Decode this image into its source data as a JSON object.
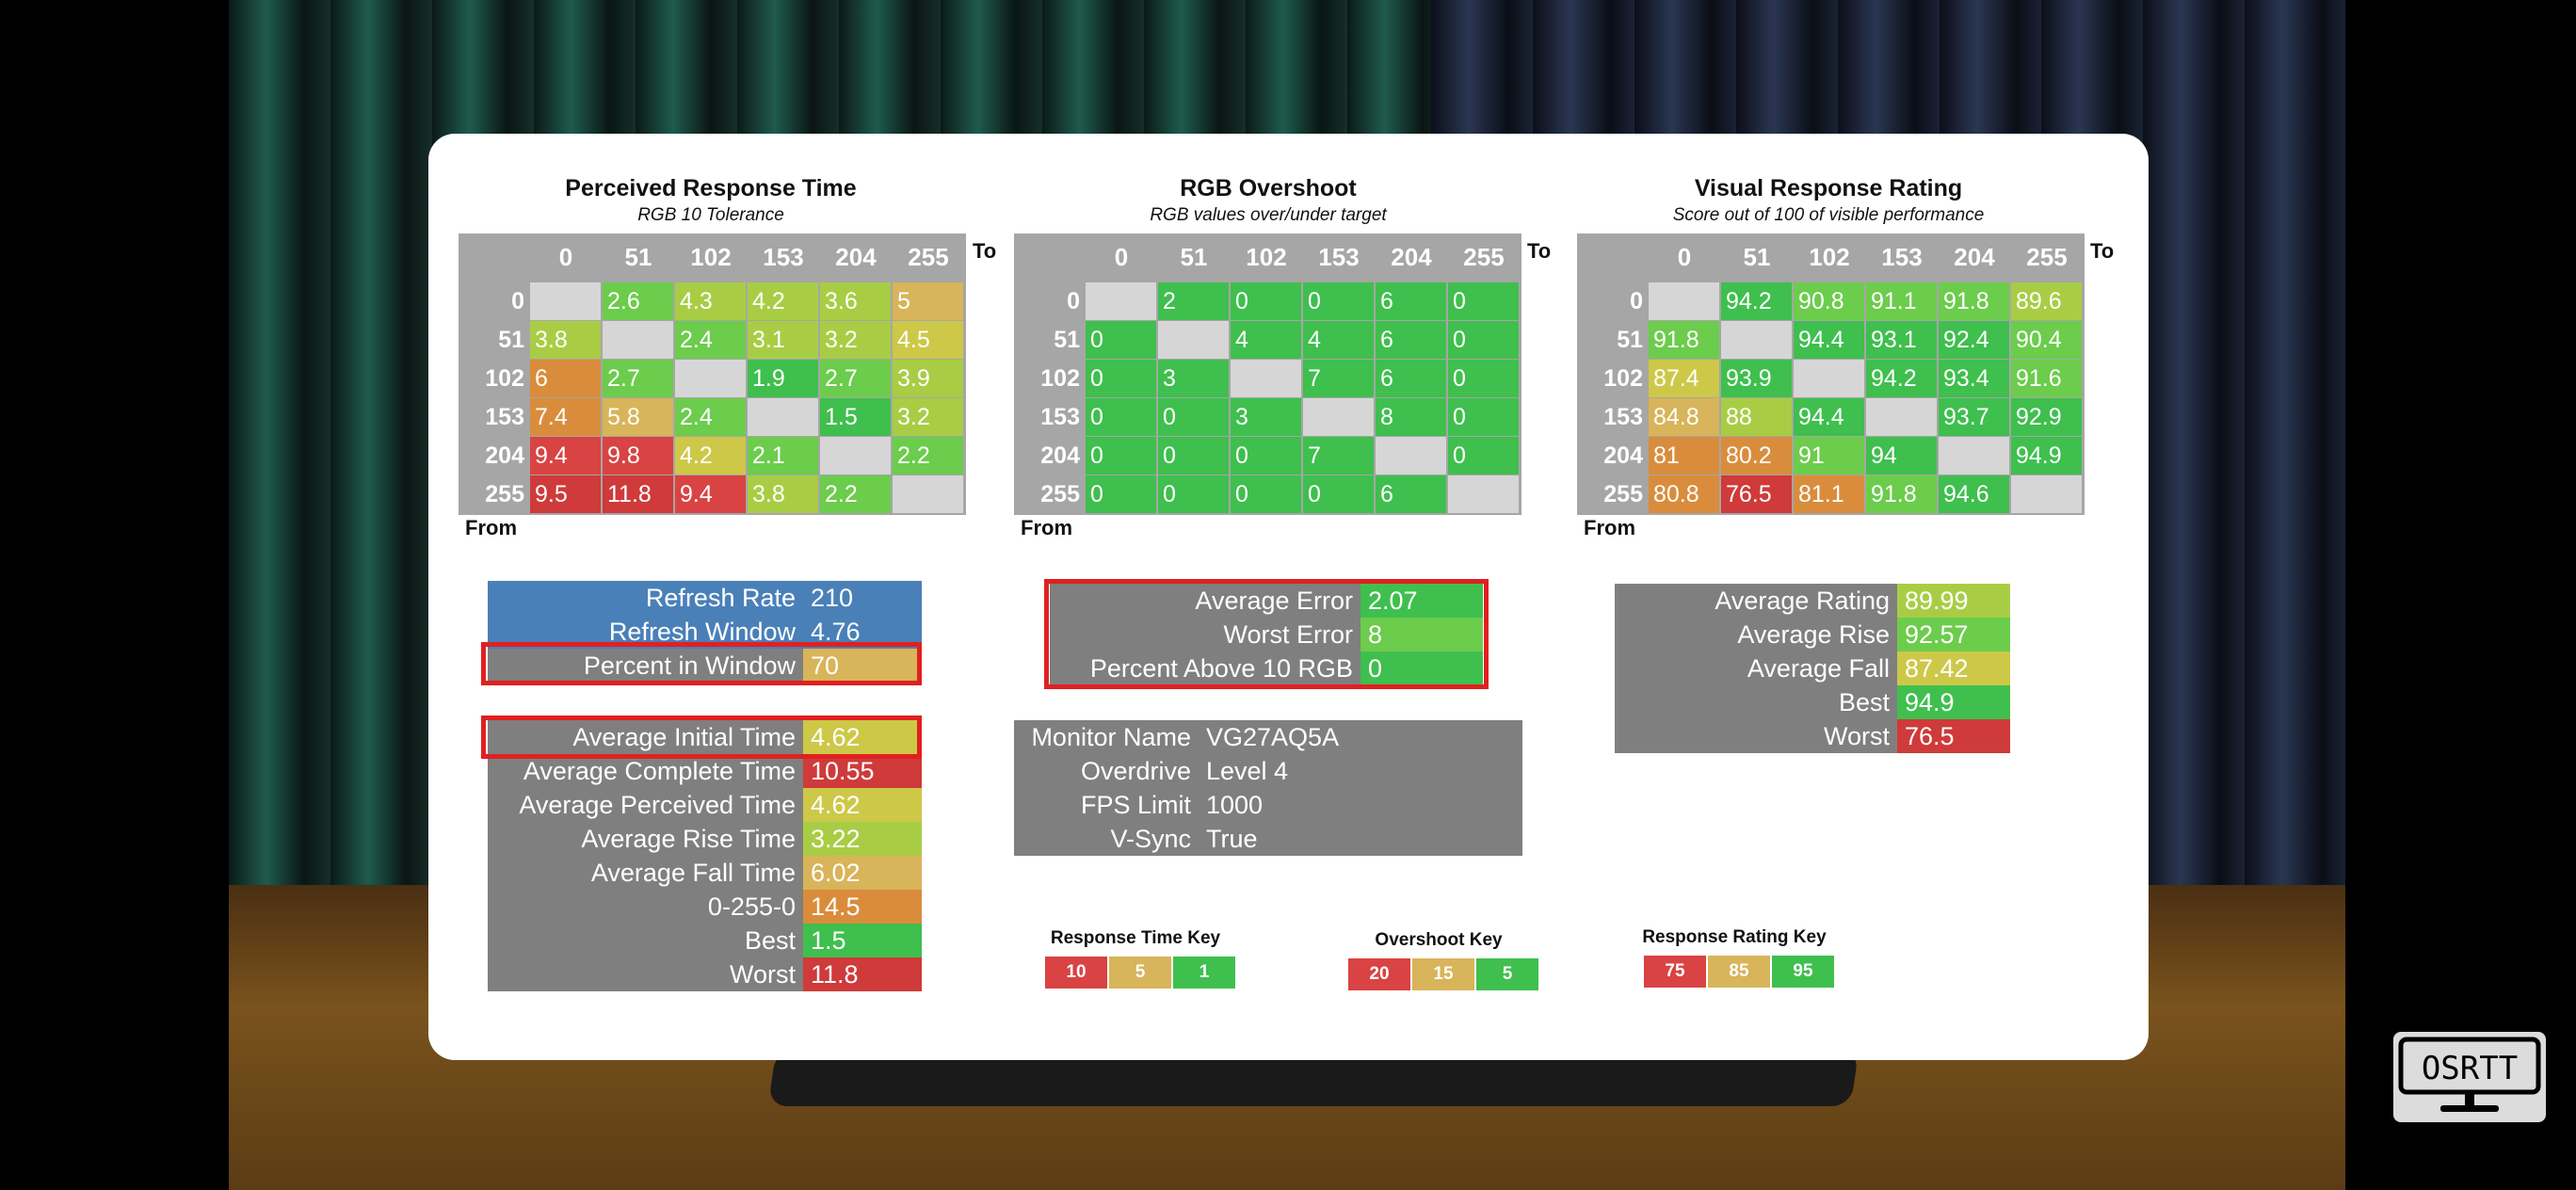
{
  "colors": {
    "grid_bg": "#a6a6a6",
    "empty_cell": "#d6d6d6",
    "panel_gray": "#7f7f7f",
    "blue": "#4a80b8",
    "highlight": "#e02020",
    "scale": {
      "green": "#3fbf4e",
      "lgreen": "#6ccc4c",
      "ygreen": "#a8cd45",
      "yellow": "#cdc848",
      "tan": "#d8b45a",
      "orange": "#d98d3c",
      "red": "#d94343",
      "dred": "#cf3a3a"
    }
  },
  "panels": {
    "response": {
      "title": "Perceived Response Time",
      "subtitle": "RGB 10 Tolerance",
      "headers": [
        "0",
        "51",
        "102",
        "153",
        "204",
        "255"
      ],
      "to_label": "To",
      "from_label": "From",
      "rows": [
        {
          "label": "0",
          "cells": [
            [
              "",
              ""
            ],
            [
              "2.6",
              "lgreen"
            ],
            [
              "4.3",
              "ygreen"
            ],
            [
              "4.2",
              "ygreen"
            ],
            [
              "3.6",
              "ygreen"
            ],
            [
              "5",
              "tan"
            ]
          ]
        },
        {
          "label": "51",
          "cells": [
            [
              "3.8",
              "ygreen"
            ],
            [
              "",
              ""
            ],
            [
              "2.4",
              "lgreen"
            ],
            [
              "3.1",
              "ygreen"
            ],
            [
              "3.2",
              "ygreen"
            ],
            [
              "4.5",
              "yellow"
            ]
          ]
        },
        {
          "label": "102",
          "cells": [
            [
              "6",
              "orange"
            ],
            [
              "2.7",
              "lgreen"
            ],
            [
              "",
              ""
            ],
            [
              "1.9",
              "green"
            ],
            [
              "2.7",
              "lgreen"
            ],
            [
              "3.9",
              "ygreen"
            ]
          ]
        },
        {
          "label": "153",
          "cells": [
            [
              "7.4",
              "orange"
            ],
            [
              "5.8",
              "tan"
            ],
            [
              "2.4",
              "lgreen"
            ],
            [
              "",
              ""
            ],
            [
              "1.5",
              "green"
            ],
            [
              "3.2",
              "ygreen"
            ]
          ]
        },
        {
          "label": "204",
          "cells": [
            [
              "9.4",
              "red"
            ],
            [
              "9.8",
              "red"
            ],
            [
              "4.2",
              "yellow"
            ],
            [
              "2.1",
              "lgreen"
            ],
            [
              "",
              ""
            ],
            [
              "2.2",
              "lgreen"
            ]
          ]
        },
        {
          "label": "255",
          "cells": [
            [
              "9.5",
              "dred"
            ],
            [
              "11.8",
              "dred"
            ],
            [
              "9.4",
              "red"
            ],
            [
              "3.8",
              "ygreen"
            ],
            [
              "2.2",
              "lgreen"
            ],
            [
              "",
              ""
            ]
          ]
        }
      ]
    },
    "overshoot": {
      "title": "RGB Overshoot",
      "subtitle": "RGB values over/under target",
      "headers": [
        "0",
        "51",
        "102",
        "153",
        "204",
        "255"
      ],
      "to_label": "To",
      "from_label": "From",
      "rows": [
        {
          "label": "0",
          "cells": [
            [
              "",
              ""
            ],
            [
              "2",
              "green"
            ],
            [
              "0",
              "green"
            ],
            [
              "0",
              "green"
            ],
            [
              "6",
              "green"
            ],
            [
              "0",
              "green"
            ]
          ]
        },
        {
          "label": "51",
          "cells": [
            [
              "0",
              "green"
            ],
            [
              "",
              ""
            ],
            [
              "4",
              "green"
            ],
            [
              "4",
              "green"
            ],
            [
              "6",
              "green"
            ],
            [
              "0",
              "green"
            ]
          ]
        },
        {
          "label": "102",
          "cells": [
            [
              "0",
              "green"
            ],
            [
              "3",
              "green"
            ],
            [
              "",
              ""
            ],
            [
              "7",
              "green"
            ],
            [
              "6",
              "green"
            ],
            [
              "0",
              "green"
            ]
          ]
        },
        {
          "label": "153",
          "cells": [
            [
              "0",
              "green"
            ],
            [
              "0",
              "green"
            ],
            [
              "3",
              "green"
            ],
            [
              "",
              ""
            ],
            [
              "8",
              "green"
            ],
            [
              "0",
              "green"
            ]
          ]
        },
        {
          "label": "204",
          "cells": [
            [
              "0",
              "green"
            ],
            [
              "0",
              "green"
            ],
            [
              "0",
              "green"
            ],
            [
              "7",
              "green"
            ],
            [
              "",
              ""
            ],
            [
              "0",
              "green"
            ]
          ]
        },
        {
          "label": "255",
          "cells": [
            [
              "0",
              "green"
            ],
            [
              "0",
              "green"
            ],
            [
              "0",
              "green"
            ],
            [
              "0",
              "green"
            ],
            [
              "6",
              "green"
            ],
            [
              "",
              ""
            ]
          ]
        }
      ]
    },
    "rating": {
      "title": "Visual Response Rating",
      "subtitle": "Score out of 100 of visible performance",
      "headers": [
        "0",
        "51",
        "102",
        "153",
        "204",
        "255"
      ],
      "to_label": "To",
      "from_label": "From",
      "rows": [
        {
          "label": "0",
          "cells": [
            [
              "",
              ""
            ],
            [
              "94.2",
              "green"
            ],
            [
              "90.8",
              "lgreen"
            ],
            [
              "91.1",
              "lgreen"
            ],
            [
              "91.8",
              "lgreen"
            ],
            [
              "89.6",
              "ygreen"
            ]
          ]
        },
        {
          "label": "51",
          "cells": [
            [
              "91.8",
              "lgreen"
            ],
            [
              "",
              ""
            ],
            [
              "94.4",
              "green"
            ],
            [
              "93.1",
              "green"
            ],
            [
              "92.4",
              "green"
            ],
            [
              "90.4",
              "lgreen"
            ]
          ]
        },
        {
          "label": "102",
          "cells": [
            [
              "87.4",
              "yellow"
            ],
            [
              "93.9",
              "green"
            ],
            [
              "",
              ""
            ],
            [
              "94.2",
              "green"
            ],
            [
              "93.4",
              "green"
            ],
            [
              "91.6",
              "lgreen"
            ]
          ]
        },
        {
          "label": "153",
          "cells": [
            [
              "84.8",
              "tan"
            ],
            [
              "88",
              "ygreen"
            ],
            [
              "94.4",
              "green"
            ],
            [
              "",
              ""
            ],
            [
              "93.7",
              "green"
            ],
            [
              "92.9",
              "green"
            ]
          ]
        },
        {
          "label": "204",
          "cells": [
            [
              "81",
              "orange"
            ],
            [
              "80.2",
              "orange"
            ],
            [
              "91",
              "lgreen"
            ],
            [
              "94",
              "green"
            ],
            [
              "",
              ""
            ],
            [
              "94.9",
              "green"
            ]
          ]
        },
        {
          "label": "255",
          "cells": [
            [
              "80.8",
              "orange"
            ],
            [
              "76.5",
              "dred"
            ],
            [
              "81.1",
              "orange"
            ],
            [
              "91.8",
              "lgreen"
            ],
            [
              "94.6",
              "green"
            ],
            [
              "",
              ""
            ]
          ]
        }
      ]
    }
  },
  "stats": {
    "refresh": [
      {
        "label": "Refresh Rate",
        "value": "210",
        "bg": "blue",
        "vbg": "blue"
      },
      {
        "label": "Refresh Window",
        "value": "4.76",
        "bg": "blue",
        "vbg": "blue"
      },
      {
        "label": "Percent in Window",
        "value": "70",
        "bg": "panel_gray",
        "vbg": "tan"
      }
    ],
    "times": [
      {
        "label": "Average Initial Time",
        "value": "4.62",
        "vbg": "yellow"
      },
      {
        "label": "Average Complete Time",
        "value": "10.55",
        "vbg": "dred"
      },
      {
        "label": "Average Perceived Time",
        "value": "4.62",
        "vbg": "yellow"
      },
      {
        "label": "Average Rise Time",
        "value": "3.22",
        "vbg": "ygreen"
      },
      {
        "label": "Average Fall Time",
        "value": "6.02",
        "vbg": "tan"
      },
      {
        "label": "0-255-0",
        "value": "14.5",
        "vbg": "orange"
      },
      {
        "label": "Best",
        "value": "1.5",
        "vbg": "green"
      },
      {
        "label": "Worst",
        "value": "11.8",
        "vbg": "dred"
      }
    ],
    "overshoot": [
      {
        "label": "Average Error",
        "value": "2.07",
        "vbg": "green"
      },
      {
        "label": "Worst Error",
        "value": "8",
        "vbg": "lgreen"
      },
      {
        "label": "Percent Above 10 RGB",
        "value": "0",
        "vbg": "green"
      }
    ],
    "monitor": [
      {
        "label": "Monitor Name",
        "value": "VG27AQ5A"
      },
      {
        "label": "Overdrive",
        "value": "Level 4"
      },
      {
        "label": "FPS Limit",
        "value": "1000"
      },
      {
        "label": "V-Sync",
        "value": "True"
      }
    ],
    "rating": [
      {
        "label": "Average Rating",
        "value": "89.99",
        "vbg": "ygreen"
      },
      {
        "label": "Average Rise",
        "value": "92.57",
        "vbg": "lgreen"
      },
      {
        "label": "Average Fall",
        "value": "87.42",
        "vbg": "yellow"
      },
      {
        "label": "Best",
        "value": "94.9",
        "vbg": "green"
      },
      {
        "label": "Worst",
        "value": "76.5",
        "vbg": "dred"
      }
    ]
  },
  "keys": [
    {
      "title": "Response Time Key",
      "items": [
        [
          "10",
          "red"
        ],
        [
          "5",
          "tan"
        ],
        [
          "1",
          "green"
        ]
      ]
    },
    {
      "title": "Overshoot Key",
      "items": [
        [
          "20",
          "red"
        ],
        [
          "15",
          "tan"
        ],
        [
          "5",
          "green"
        ]
      ]
    },
    {
      "title": "Response Rating Key",
      "items": [
        [
          "75",
          "red"
        ],
        [
          "85",
          "tan"
        ],
        [
          "95",
          "green"
        ]
      ]
    }
  ],
  "logo": {
    "text": "OSRTT",
    "icon": "monitor-icon"
  }
}
